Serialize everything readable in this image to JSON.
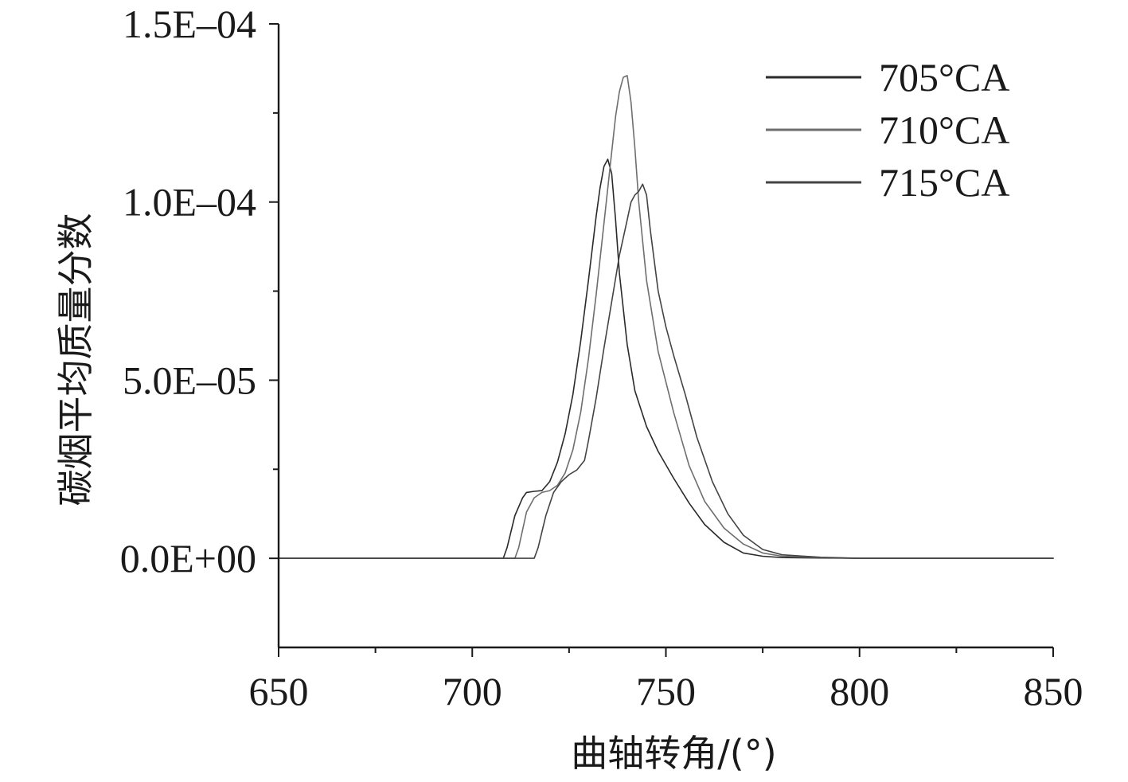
{
  "chart_data": {
    "type": "line",
    "title": "",
    "xlabel": "曲轴转角/(°)",
    "ylabel": "碳烟平均质量分数",
    "xlim": [
      650,
      850
    ],
    "ylim": [
      -2.5e-05,
      0.00015
    ],
    "x_ticks": [
      650,
      700,
      750,
      800,
      850
    ],
    "x_tick_labels": [
      "650",
      "700",
      "750",
      "800",
      "850"
    ],
    "x_minor_ticks": [
      675,
      725,
      775,
      825
    ],
    "y_ticks": [
      0,
      5e-05,
      0.0001,
      0.00015
    ],
    "y_tick_labels": [
      "0.0E+00",
      "5.0E–05",
      "1.0E–04",
      "1.5E–04"
    ],
    "y_minor_ticks": [
      2.5e-05,
      7.5e-05,
      0.000125
    ],
    "grid": false,
    "legend_position": "top-right",
    "series": [
      {
        "name": "705°CA",
        "color": "#2a2a2a",
        "x": [
          650,
          708,
          709,
          711,
          713,
          714,
          716,
          718,
          720,
          722,
          724,
          726,
          728,
          730,
          732,
          733,
          734,
          735,
          736,
          737,
          738,
          740,
          742,
          745,
          748,
          752,
          756,
          760,
          765,
          770,
          775,
          780,
          790,
          800,
          850
        ],
        "y": [
          0,
          0,
          3e-06,
          1.2e-05,
          1.7e-05,
          1.85e-05,
          1.88e-05,
          1.9e-05,
          2.15e-05,
          2.7e-05,
          3.5e-05,
          4.6e-05,
          6.1e-05,
          7.8e-05,
          9.6e-05,
          0.000104,
          0.00011,
          0.000112,
          0.000108,
          9.5e-05,
          8e-05,
          6e-05,
          4.7e-05,
          3.7e-05,
          3e-05,
          2.25e-05,
          1.55e-05,
          9.5e-06,
          4.5e-06,
          1.5e-06,
          6e-07,
          2e-07,
          1e-07,
          0,
          0
        ]
      },
      {
        "name": "710°CA",
        "color": "#6e6e6e",
        "x": [
          650,
          711,
          712,
          714,
          716,
          718,
          720,
          722,
          724,
          726,
          728,
          730,
          732,
          734,
          736,
          737,
          738,
          739,
          740,
          741,
          742,
          743,
          745,
          748,
          752,
          756,
          760,
          765,
          770,
          775,
          780,
          790,
          800,
          850
        ],
        "y": [
          0,
          0,
          3e-06,
          1.3e-05,
          1.7e-05,
          1.85e-05,
          1.9e-05,
          2.05e-05,
          2.4e-05,
          3.05e-05,
          4.1e-05,
          5.6e-05,
          7.4e-05,
          9.4e-05,
          0.000114,
          0.000124,
          0.000131,
          0.000135,
          0.0001355,
          0.000128,
          0.000115,
          0.0001,
          7.8e-05,
          5.8e-05,
          4.1e-05,
          2.6e-05,
          1.6e-05,
          8.5e-06,
          4e-06,
          1.5e-06,
          6e-07,
          2e-07,
          0,
          0
        ]
      },
      {
        "name": "715°CA",
        "color": "#444444",
        "x": [
          650,
          716,
          717,
          719,
          721,
          723,
          725,
          727,
          729,
          730,
          732,
          734,
          736,
          738,
          740,
          741,
          742,
          743,
          744,
          745,
          746,
          748,
          750,
          752,
          755,
          758,
          762,
          766,
          770,
          775,
          780,
          790,
          800,
          850
        ],
        "y": [
          0,
          0,
          3e-06,
          1.2e-05,
          1.85e-05,
          2.15e-05,
          2.35e-05,
          2.48e-05,
          2.75e-05,
          3.3e-05,
          4.5e-05,
          5.9e-05,
          7.2e-05,
          8.5e-05,
          9.5e-05,
          0.0001,
          0.000102,
          0.000103,
          0.000105,
          0.000102,
          9.2e-05,
          7.5e-05,
          6.5e-05,
          5.7e-05,
          4.6e-05,
          3.4e-05,
          2.15e-05,
          1.25e-05,
          6.5e-06,
          2.5e-06,
          1e-06,
          3e-07,
          0,
          0
        ]
      }
    ]
  }
}
